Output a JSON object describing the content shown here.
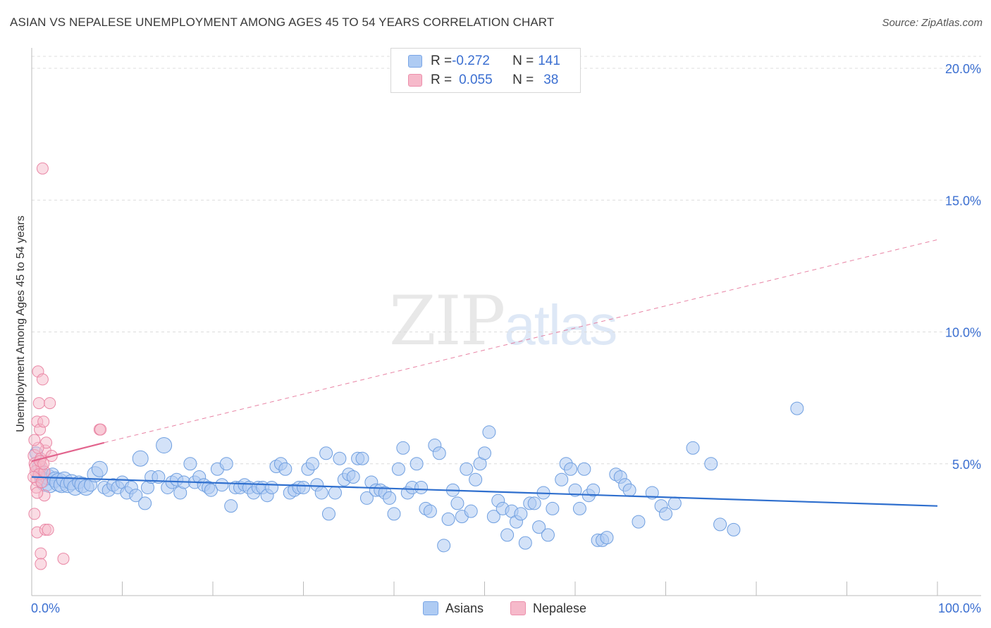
{
  "title": "ASIAN VS NEPALESE UNEMPLOYMENT AMONG AGES 45 TO 54 YEARS CORRELATION CHART",
  "source": "Source: ZipAtlas.com",
  "watermark": {
    "zip": "ZIP",
    "atlas": "atlas"
  },
  "legend": {
    "rows": [
      {
        "r_label": "R = ",
        "r_value": "-0.272",
        "n_label": "N = ",
        "n_value": "141",
        "color": "#aecbf3",
        "border": "#7aa6e6"
      },
      {
        "r_label": "R = ",
        "r_value": "0.055",
        "n_label": "N = ",
        "n_value": "38",
        "color": "#f6b9ca",
        "border": "#ec8fab"
      }
    ]
  },
  "bottom_legend": [
    {
      "label": "Asians"
    },
    {
      "label": "Nepalese"
    }
  ],
  "colors": {
    "asian_fill": "#aecbf3",
    "asian_stroke": "#6f9fe0",
    "asian_line": "#2f6fce",
    "nepalese_fill": "#f6b9ca",
    "nepalese_stroke": "#ea88a6",
    "nepalese_line": "#e2648d",
    "grid": "#dcdcdc",
    "tick_text": "#3b6fd1"
  },
  "chart_data": {
    "type": "scatter",
    "title": "ASIAN VS NEPALESE UNEMPLOYMENT AMONG AGES 45 TO 54 YEARS CORRELATION CHART",
    "xlabel": "",
    "ylabel": "Unemployment Among Ages 45 to 54 years",
    "xlim": [
      0,
      100
    ],
    "ylim": [
      0,
      20
    ],
    "x_tick_labels": [
      "0.0%",
      "100.0%"
    ],
    "y_ticks": [
      5,
      10,
      15,
      20
    ],
    "y_tick_labels": [
      "5.0%",
      "10.0%",
      "15.0%",
      "20.0%"
    ],
    "series": [
      {
        "name": "Asians",
        "trend": {
          "x0": 0,
          "y0": 4.5,
          "x1": 100,
          "y1": 3.4,
          "style": "solid"
        },
        "points": [
          [
            0.5,
            5.4,
            1
          ],
          [
            0.8,
            4.9,
            1
          ],
          [
            1.0,
            4.6,
            2
          ],
          [
            1.2,
            4.4,
            2
          ],
          [
            1.5,
            4.3,
            3
          ],
          [
            1.8,
            4.5,
            2
          ],
          [
            2.0,
            4.2,
            2
          ],
          [
            2.3,
            4.6,
            1
          ],
          [
            2.6,
            4.4,
            2
          ],
          [
            3.0,
            4.3,
            3
          ],
          [
            3.3,
            4.2,
            2
          ],
          [
            3.6,
            4.4,
            2
          ],
          [
            4.0,
            4.2,
            2
          ],
          [
            4.4,
            4.3,
            2
          ],
          [
            4.8,
            4.1,
            2
          ],
          [
            5.2,
            4.3,
            1
          ],
          [
            5.6,
            4.2,
            2
          ],
          [
            6.0,
            4.1,
            2
          ],
          [
            6.5,
            4.2,
            1
          ],
          [
            7.0,
            4.6,
            2
          ],
          [
            7.5,
            4.8,
            2
          ],
          [
            8.0,
            4.1,
            1
          ],
          [
            8.5,
            4.0,
            1
          ],
          [
            9.0,
            4.2,
            1
          ],
          [
            9.5,
            4.1,
            1
          ],
          [
            10.0,
            4.3,
            1
          ],
          [
            10.5,
            3.9,
            1
          ],
          [
            11.0,
            4.1,
            1
          ],
          [
            11.5,
            3.8,
            1
          ],
          [
            12.0,
            5.2,
            2
          ],
          [
            12.5,
            3.5,
            1
          ],
          [
            12.8,
            4.1,
            1
          ],
          [
            13.2,
            4.5,
            1
          ],
          [
            14.0,
            4.5,
            1
          ],
          [
            14.6,
            5.7,
            2
          ],
          [
            15.0,
            4.1,
            1
          ],
          [
            15.5,
            4.3,
            1
          ],
          [
            16.0,
            4.4,
            1
          ],
          [
            16.4,
            3.9,
            1
          ],
          [
            16.8,
            4.3,
            1
          ],
          [
            17.5,
            5.0,
            1
          ],
          [
            18.0,
            4.3,
            1
          ],
          [
            18.5,
            4.5,
            1
          ],
          [
            19.0,
            4.2,
            1
          ],
          [
            19.5,
            4.1,
            1
          ],
          [
            19.8,
            4.0,
            1
          ],
          [
            20.5,
            4.8,
            1
          ],
          [
            21.0,
            4.2,
            1
          ],
          [
            21.5,
            5.0,
            1
          ],
          [
            22.0,
            3.4,
            1
          ],
          [
            22.5,
            4.1,
            1
          ],
          [
            23.0,
            4.1,
            1
          ],
          [
            23.5,
            4.2,
            1
          ],
          [
            24.0,
            4.1,
            1
          ],
          [
            24.5,
            3.9,
            1
          ],
          [
            25.0,
            4.1,
            1
          ],
          [
            25.5,
            4.1,
            1
          ],
          [
            26.0,
            3.8,
            1
          ],
          [
            26.5,
            4.1,
            1
          ],
          [
            27.0,
            4.9,
            1
          ],
          [
            27.5,
            5.0,
            1
          ],
          [
            28.0,
            4.8,
            1
          ],
          [
            28.5,
            3.9,
            1
          ],
          [
            29.0,
            4.0,
            1
          ],
          [
            29.5,
            4.1,
            1
          ],
          [
            30.0,
            4.1,
            1
          ],
          [
            30.5,
            4.8,
            1
          ],
          [
            31.0,
            5.0,
            1
          ],
          [
            31.5,
            4.2,
            1
          ],
          [
            32.0,
            3.9,
            1
          ],
          [
            32.5,
            5.4,
            1
          ],
          [
            32.8,
            3.1,
            1
          ],
          [
            33.5,
            3.9,
            1
          ],
          [
            34.0,
            5.2,
            1
          ],
          [
            34.5,
            4.4,
            1
          ],
          [
            35.0,
            4.6,
            1
          ],
          [
            35.5,
            4.5,
            1
          ],
          [
            36.0,
            5.2,
            1
          ],
          [
            36.5,
            5.2,
            1
          ],
          [
            37.0,
            3.7,
            1
          ],
          [
            37.5,
            4.3,
            1
          ],
          [
            38.0,
            4.0,
            1
          ],
          [
            38.5,
            4.0,
            1
          ],
          [
            39.0,
            3.9,
            1
          ],
          [
            39.5,
            3.7,
            1
          ],
          [
            40.0,
            3.1,
            1
          ],
          [
            40.5,
            4.8,
            1
          ],
          [
            41.0,
            5.6,
            1
          ],
          [
            41.5,
            3.9,
            1
          ],
          [
            42.0,
            4.1,
            1
          ],
          [
            42.5,
            5.0,
            1
          ],
          [
            43.0,
            4.1,
            1
          ],
          [
            43.5,
            3.3,
            1
          ],
          [
            44.0,
            3.2,
            1
          ],
          [
            44.5,
            5.7,
            1
          ],
          [
            45.0,
            5.4,
            1
          ],
          [
            45.5,
            1.9,
            1
          ],
          [
            46.0,
            2.9,
            1
          ],
          [
            46.5,
            4.0,
            1
          ],
          [
            47.0,
            3.5,
            1
          ],
          [
            47.5,
            3.0,
            1
          ],
          [
            48.0,
            4.8,
            1
          ],
          [
            48.5,
            3.2,
            1
          ],
          [
            49.0,
            4.4,
            1
          ],
          [
            49.5,
            5.0,
            1
          ],
          [
            50.0,
            5.4,
            1
          ],
          [
            50.5,
            6.2,
            1
          ],
          [
            51.0,
            3.0,
            1
          ],
          [
            51.5,
            3.6,
            1
          ],
          [
            52.0,
            3.3,
            1
          ],
          [
            52.5,
            2.3,
            1
          ],
          [
            53.0,
            3.2,
            1
          ],
          [
            53.5,
            2.8,
            1
          ],
          [
            54.0,
            3.1,
            1
          ],
          [
            54.5,
            2.0,
            1
          ],
          [
            55.0,
            3.5,
            1
          ],
          [
            55.5,
            3.5,
            1
          ],
          [
            56.0,
            2.6,
            1
          ],
          [
            56.5,
            3.9,
            1
          ],
          [
            57.0,
            2.3,
            1
          ],
          [
            57.5,
            3.3,
            1
          ],
          [
            58.5,
            4.4,
            1
          ],
          [
            59.0,
            5.0,
            1
          ],
          [
            59.5,
            4.8,
            1
          ],
          [
            60.0,
            4.0,
            1
          ],
          [
            60.5,
            3.3,
            1
          ],
          [
            61.0,
            4.8,
            1
          ],
          [
            61.5,
            3.8,
            1
          ],
          [
            62.0,
            4.0,
            1
          ],
          [
            62.5,
            2.1,
            1
          ],
          [
            63.0,
            2.1,
            1
          ],
          [
            63.5,
            2.2,
            1
          ],
          [
            64.5,
            4.6,
            1
          ],
          [
            65.0,
            4.5,
            1
          ],
          [
            65.5,
            4.2,
            1
          ],
          [
            66.0,
            4.0,
            1
          ],
          [
            67.0,
            2.8,
            1
          ],
          [
            68.5,
            3.9,
            1
          ],
          [
            69.5,
            3.4,
            1
          ],
          [
            70.0,
            3.1,
            1
          ],
          [
            71.0,
            3.5,
            1
          ],
          [
            73.0,
            5.6,
            1
          ],
          [
            75.0,
            5.0,
            1
          ],
          [
            76.0,
            2.7,
            1
          ],
          [
            77.5,
            2.5,
            1
          ],
          [
            84.5,
            7.1,
            1
          ]
        ]
      },
      {
        "name": "Nepalese",
        "trend": {
          "x0": 0,
          "y0": 5.1,
          "x1": 8.0,
          "y1": 5.8,
          "style": "solid",
          "extension": {
            "x0": 8.0,
            "y0": 5.8,
            "x1": 100,
            "y1": 13.5,
            "style": "dashed"
          }
        },
        "points": [
          [
            0.3,
            5.3,
            2
          ],
          [
            0.4,
            5.0,
            2
          ],
          [
            0.5,
            4.7,
            2
          ],
          [
            0.6,
            4.4,
            2
          ],
          [
            0.5,
            4.1,
            1
          ],
          [
            0.6,
            6.6,
            1
          ],
          [
            0.7,
            8.5,
            1
          ],
          [
            0.8,
            7.3,
            1
          ],
          [
            0.9,
            6.3,
            1
          ],
          [
            1.0,
            5.2,
            1
          ],
          [
            1.1,
            4.9,
            1
          ],
          [
            1.2,
            8.2,
            1
          ],
          [
            1.3,
            6.6,
            1
          ],
          [
            1.4,
            3.8,
            1
          ],
          [
            1.5,
            5.5,
            1
          ],
          [
            1.6,
            5.8,
            1
          ],
          [
            1.2,
            16.2,
            1
          ],
          [
            0.3,
            3.1,
            1
          ],
          [
            0.6,
            2.4,
            1
          ],
          [
            1.0,
            1.6,
            1
          ],
          [
            1.0,
            1.2,
            1
          ],
          [
            1.5,
            2.5,
            1
          ],
          [
            1.8,
            2.5,
            1
          ],
          [
            2.0,
            7.3,
            1
          ],
          [
            2.2,
            5.3,
            1
          ],
          [
            3.5,
            1.4,
            1
          ],
          [
            7.5,
            6.3,
            1
          ],
          [
            7.6,
            6.3,
            1
          ],
          [
            0.4,
            4.9,
            1
          ],
          [
            0.8,
            4.6,
            1
          ],
          [
            0.2,
            4.5,
            1
          ],
          [
            0.9,
            5.1,
            1
          ],
          [
            1.1,
            4.3,
            1
          ],
          [
            0.7,
            5.6,
            1
          ],
          [
            0.3,
            5.9,
            1
          ],
          [
            1.4,
            4.7,
            1
          ],
          [
            0.6,
            3.9,
            1
          ],
          [
            1.3,
            5.0,
            1
          ]
        ]
      }
    ]
  }
}
